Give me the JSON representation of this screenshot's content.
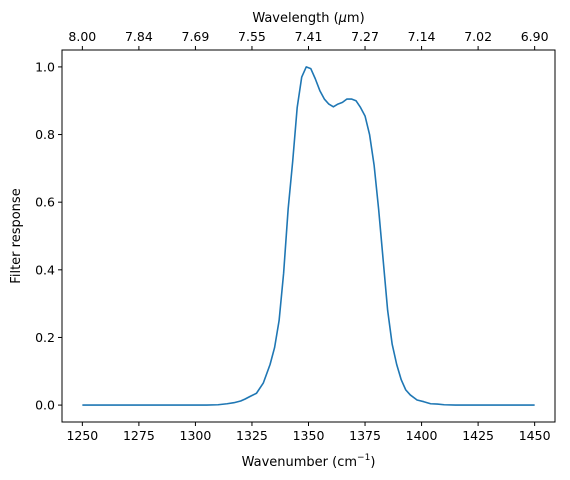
{
  "chart_data": {
    "type": "line",
    "xlabel": "Wavenumber (cm",
    "xlabel_sup": "−1",
    "xlabel_end": ")",
    "ylabel": "Filter response",
    "top_axis_label": "Wavelength (",
    "top_axis_label_unit_mu": "μ",
    "top_axis_label_end": "m)",
    "xlim": [
      1241,
      1459
    ],
    "ylim": [
      -0.05,
      1.05
    ],
    "x_ticks": [
      1250,
      1275,
      1300,
      1325,
      1350,
      1375,
      1400,
      1425,
      1450
    ],
    "x_tick_labels": [
      "1250",
      "1275",
      "1300",
      "1325",
      "1350",
      "1375",
      "1400",
      "1425",
      "1450"
    ],
    "y_ticks": [
      0.0,
      0.2,
      0.4,
      0.6,
      0.8,
      1.0
    ],
    "y_tick_labels": [
      "0.0",
      "0.2",
      "0.4",
      "0.6",
      "0.8",
      "1.0"
    ],
    "top_ticks_wavenumber": [
      1250,
      1275,
      1300,
      1325,
      1350,
      1375,
      1400,
      1425,
      1450
    ],
    "top_tick_labels": [
      "8.00",
      "7.84",
      "7.69",
      "7.55",
      "7.41",
      "7.27",
      "7.14",
      "7.02",
      "6.90"
    ],
    "grid": false,
    "series": [
      {
        "color": "#1f77b4",
        "x": [
          1250,
          1260,
          1270,
          1280,
          1290,
          1300,
          1305,
          1310,
          1314,
          1317,
          1320,
          1322,
          1324,
          1327,
          1330,
          1333,
          1335,
          1337,
          1339,
          1341,
          1343,
          1345,
          1347,
          1349,
          1351,
          1353,
          1355,
          1357,
          1359,
          1361,
          1363,
          1365,
          1367,
          1369,
          1371,
          1373,
          1375,
          1377,
          1379,
          1381,
          1383,
          1385,
          1387,
          1389,
          1391,
          1393,
          1395,
          1398,
          1401,
          1404,
          1407,
          1410,
          1415,
          1420,
          1430,
          1440,
          1450
        ],
        "y": [
          0.0,
          0.0,
          0.0,
          0.0,
          0.0,
          0.0,
          0.0,
          0.001,
          0.004,
          0.007,
          0.012,
          0.018,
          0.025,
          0.035,
          0.065,
          0.12,
          0.17,
          0.25,
          0.39,
          0.58,
          0.72,
          0.88,
          0.97,
          1.0,
          0.995,
          0.965,
          0.93,
          0.905,
          0.89,
          0.882,
          0.89,
          0.895,
          0.905,
          0.905,
          0.9,
          0.88,
          0.855,
          0.8,
          0.71,
          0.58,
          0.43,
          0.28,
          0.18,
          0.12,
          0.075,
          0.045,
          0.03,
          0.015,
          0.01,
          0.004,
          0.003,
          0.001,
          0.0,
          0.0,
          0.0,
          0.0,
          0.0
        ]
      }
    ]
  }
}
